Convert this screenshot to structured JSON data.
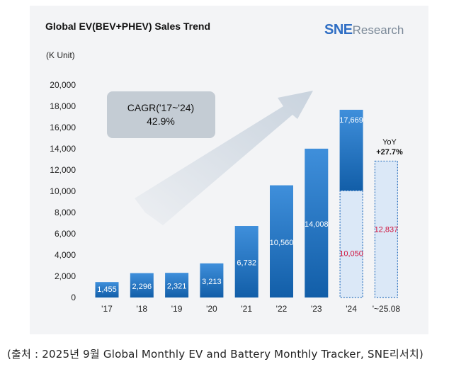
{
  "chart_data": {
    "type": "bar",
    "title": "Global EV(BEV+PHEV) Sales Trend",
    "brand": {
      "sne": "SNE",
      "research": "Research"
    },
    "unit_label": "(K Unit)",
    "categories": [
      "'17",
      "'18",
      "'19",
      "'20",
      "'21",
      "'22",
      "'23",
      "'24",
      "'~25.08"
    ],
    "values": [
      1455,
      2296,
      2321,
      3213,
      6732,
      10560,
      14008,
      17669,
      null
    ],
    "value_labels": [
      "1,455",
      "2,296",
      "2,321",
      "3,213",
      "6,732",
      "10,560",
      "14,008",
      "17,669",
      ""
    ],
    "partial": {
      "series": [
        {
          "category": "'24",
          "value": 10050,
          "label": "10,050"
        },
        {
          "category": "'~25.08",
          "value": 12837,
          "label": "12,837"
        }
      ]
    },
    "ylim": [
      0,
      20000
    ],
    "yticks": [
      0,
      2000,
      4000,
      6000,
      8000,
      10000,
      12000,
      14000,
      16000,
      18000,
      20000
    ],
    "ytick_labels": [
      "0",
      "2,000",
      "4,000",
      "6,000",
      "8,000",
      "10,000",
      "12,000",
      "14,000",
      "16,000",
      "18,000",
      "20,000"
    ],
    "annotations": {
      "cagr_line1": "CAGR('17~'24)",
      "cagr_line2": "42.9%",
      "yoy_line1": "YoY",
      "yoy_line2": "+27.7%"
    },
    "colors": {
      "bar_top": "#3f8fdb",
      "bar_bottom": "#125ea8",
      "partial_fill": "#dbe8f7",
      "partial_border": "#2e73bf",
      "partial_label": "#d0103a",
      "arrow": "#c9d3de",
      "cagr_box": "#c4ccd4"
    }
  },
  "source_text": "(출처 : 2025년 9월 Global Monthly EV and Battery Monthly Tracker, SNE리서치)"
}
